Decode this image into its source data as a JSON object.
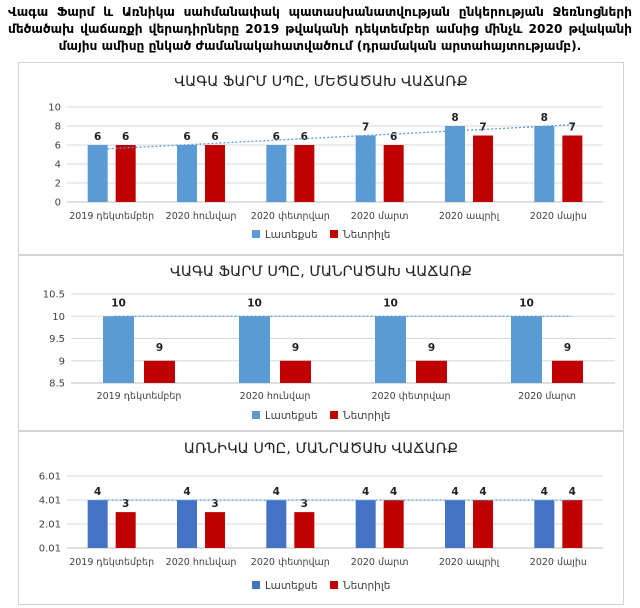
{
  "caption": "Վագա Ֆարմ և Առնիկա սահմանափակ պատասխանատվության ընկերության Ջեռնոցների մեծածախ վաճառքի վերադիրները 2019 թվականի դեկտեմբեր ամսից մինչև 2020 թվականի մայիս ամիսը ընկած ժամանակահատվածում (դրամական արտահայտությամբ).",
  "colors": {
    "chart1_series": [
      "#5b9bd5",
      "#c00000"
    ],
    "chart2_series": [
      "#5b9bd5",
      "#c00000"
    ],
    "chart3_series": [
      "#4472c4",
      "#c00000"
    ],
    "trendline": "#5b9bd5",
    "grid": "#d9d9d9"
  },
  "chart_data": [
    {
      "type": "bar",
      "title": "ՎԱԳԱ ՖԱՐՄ ՍՊԸ, ՄԵԾԱԾԱԽ ՎԱՃԱՌՔ",
      "categories": [
        "2019 դեկտեմբեր",
        "2020 հունվար",
        "2020 փետրվար",
        "2020 մարտ",
        "2020 ապրիլ",
        "2020 մայիս"
      ],
      "series": [
        {
          "name": "Լատեքսե",
          "values": [
            6,
            6,
            6,
            7,
            8,
            8
          ]
        },
        {
          "name": "Նետրիլե",
          "values": [
            6,
            6,
            6,
            6,
            7,
            7
          ]
        }
      ],
      "yticks": [
        "0",
        "2",
        "4",
        "6",
        "8",
        "10"
      ],
      "ylim": [
        0,
        10
      ],
      "trendline": true,
      "trend_series": 0,
      "grid": true,
      "legend": "bottom"
    },
    {
      "type": "bar",
      "title": "ՎԱԳԱ ՖԱՐՄ ՍՊԸ, ՄԱՆՐԱԾԱԽ ՎԱՃԱՌՔ",
      "categories": [
        "2019 դեկտեմբեր",
        "2020 հունվար",
        "2020 փետրվար",
        "2020 մարտ"
      ],
      "series": [
        {
          "name": "Լատեքսե",
          "values": [
            10,
            10,
            10,
            10
          ]
        },
        {
          "name": "Նետրիլե",
          "values": [
            9,
            9,
            9,
            9
          ]
        }
      ],
      "yticks": [
        "8.5",
        "9",
        "9.5",
        "10",
        "10.5"
      ],
      "ylim": [
        8.5,
        10.5
      ],
      "trendline": true,
      "trend_series": 0,
      "grid": true,
      "legend": "bottom"
    },
    {
      "type": "bar",
      "title": "ԱՌՆԻԿԱ ՍՊԸ, ՄԱՆՐԱԾԱԽ ՎԱՃԱՌՔ",
      "categories": [
        "2019 դեկտեմբեր",
        "2020 հունվար",
        "2020 փետրվար",
        "2020 մարտ",
        "2020 ապրիլ",
        "2020 մայիս"
      ],
      "series": [
        {
          "name": "Լատեքսե",
          "values": [
            4,
            4,
            4,
            4,
            4,
            4
          ]
        },
        {
          "name": "Նետրիլե",
          "values": [
            3,
            3,
            3,
            4,
            4,
            4
          ]
        }
      ],
      "yticks": [
        "0.01",
        "2.01",
        "4.01",
        "6.01"
      ],
      "ylim": [
        0.01,
        6.01
      ],
      "trendline": true,
      "trend_series": 0,
      "grid": true,
      "legend": "bottom"
    }
  ]
}
